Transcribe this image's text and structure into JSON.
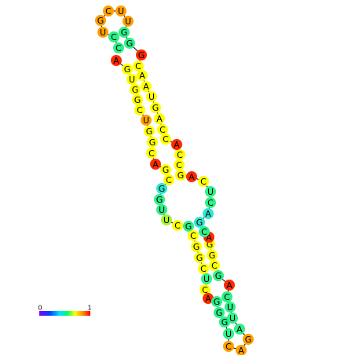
{
  "nodes": [
    {
      "label": "A",
      "color": "#ff2a00"
    },
    {
      "label": "G",
      "color": "#ffff00"
    },
    {
      "label": "U",
      "color": "#ffff00"
    },
    {
      "label": "G",
      "color": "#ffff00"
    },
    {
      "label": "G",
      "color": "#ffff00"
    },
    {
      "label": "C",
      "color": "#ffff00"
    },
    {
      "label": "U",
      "color": "#ffa000"
    },
    {
      "label": "G",
      "color": "#ffff00"
    },
    {
      "label": "G",
      "color": "#ffff00"
    },
    {
      "label": "C",
      "color": "#ffff00"
    },
    {
      "label": "A",
      "color": "#ff2a00"
    },
    {
      "label": "G",
      "color": "#ffff00"
    },
    {
      "label": "C",
      "color": "#ffff00"
    },
    {
      "label": "G",
      "color": "#2ee8d0"
    },
    {
      "label": "G",
      "color": "#2ef08a"
    },
    {
      "label": "U",
      "color": "#2ef08a"
    },
    {
      "label": "U",
      "color": "#a8f030"
    },
    {
      "label": "C",
      "color": "#ffff00"
    },
    {
      "label": "G",
      "color": "#2ef08a"
    },
    {
      "label": "C",
      "color": "#ffff00"
    },
    {
      "label": "G",
      "color": "#ffff00"
    },
    {
      "label": "G",
      "color": "#ffff00"
    },
    {
      "label": "C",
      "color": "#ffff00"
    },
    {
      "label": "U",
      "color": "#2ef08a"
    },
    {
      "label": "C",
      "color": "#ffff00"
    },
    {
      "label": "A",
      "color": "#ff2a00"
    },
    {
      "label": "G",
      "color": "#2ef08a"
    },
    {
      "label": "G",
      "color": "#2ef08a"
    },
    {
      "label": "G",
      "color": "#2ef08a"
    },
    {
      "label": "U",
      "color": "#2ef08a"
    },
    {
      "label": "C",
      "color": "#ffa000"
    },
    {
      "label": "A",
      "color": "#ffa000"
    },
    {
      "label": "G",
      "color": "#ffa000"
    },
    {
      "label": "A",
      "color": "#2ef08a"
    },
    {
      "label": "U",
      "color": "#2ef08a"
    },
    {
      "label": "U",
      "color": "#2ef08a"
    },
    {
      "label": "C",
      "color": "#2ef08a"
    },
    {
      "label": "A",
      "color": "#ff2a00"
    },
    {
      "label": "G",
      "color": "#2ef08a"
    },
    {
      "label": "C",
      "color": "#ffff00"
    },
    {
      "label": "G",
      "color": "#ffff00"
    },
    {
      "label": "G",
      "color": "#ffff00"
    },
    {
      "label": "A",
      "color": "#ff2a00"
    },
    {
      "label": "C",
      "color": "#2ef08a"
    },
    {
      "label": "G",
      "color": "#2ee8d0"
    },
    {
      "label": "A",
      "color": "#2ee8d0"
    },
    {
      "label": "C",
      "color": "#2ef08a"
    },
    {
      "label": "U",
      "color": "#2ef08a"
    },
    {
      "label": "C",
      "color": "#ffff00"
    },
    {
      "label": "A",
      "color": "#ff2a00"
    },
    {
      "label": "G",
      "color": "#ffff00"
    },
    {
      "label": "C",
      "color": "#ffff00"
    },
    {
      "label": "C",
      "color": "#ffff00"
    },
    {
      "label": "A",
      "color": "#ff2a00"
    },
    {
      "label": "C",
      "color": "#ffff00"
    },
    {
      "label": "C",
      "color": "#ffff00"
    },
    {
      "label": "A",
      "color": "#ffff00"
    },
    {
      "label": "G",
      "color": "#ffff00"
    },
    {
      "label": "U",
      "color": "#ffff00"
    },
    {
      "label": "A",
      "color": "#ffff00"
    },
    {
      "label": "A",
      "color": "#ffff00"
    },
    {
      "label": "C",
      "color": "#ffff00"
    },
    {
      "label": "G",
      "color": "#ff2a00"
    },
    {
      "label": "G",
      "color": "#2ef08a"
    },
    {
      "label": "G",
      "color": "#2ef08a"
    },
    {
      "label": "U",
      "color": "#ffa000"
    },
    {
      "label": "U",
      "color": "#ffa000"
    },
    {
      "label": "C",
      "color": "#ffa000"
    },
    {
      "label": "G",
      "color": "#ffa000"
    },
    {
      "label": "U",
      "color": "#ffa000"
    },
    {
      "label": "C",
      "color": "#2ef08a"
    },
    {
      "label": "C",
      "color": "#2ef08a"
    }
  ],
  "legend": {
    "min": "0",
    "max": "1"
  }
}
